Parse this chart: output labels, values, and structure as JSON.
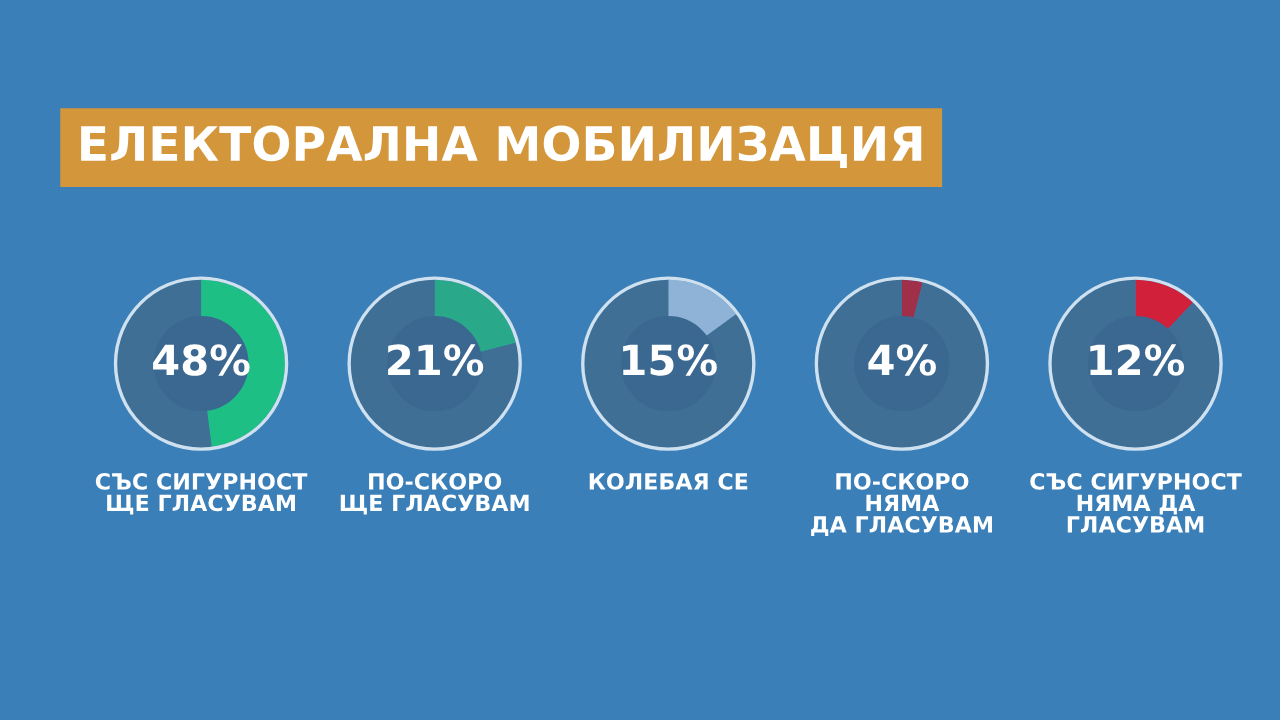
{
  "chart_data": [
    {
      "type": "donut",
      "title": "ЕЛЕКТОРАЛНА МОБИЛИЗАЦИЯ",
      "xlabel": "СЪС СИГУРНОСТ\nЩЕ ГЛАСУВАМ",
      "categories": [
        null,
        null
      ],
      "values": [
        48,
        52
      ],
      "colors": [
        "#1dbf85",
        "#3f6f95"
      ],
      "value_labels": [
        "48%",
        null
      ]
    },
    {
      "type": "donut",
      "xlabel": "ПО-СКОРО\nЩЕ ГЛАСУВАМ",
      "categories": [
        null,
        null
      ],
      "values": [
        21,
        79
      ],
      "colors": [
        "#2aa98a",
        "#3f6f95"
      ],
      "value_labels": [
        "21%",
        null
      ]
    },
    {
      "type": "donut",
      "xlabel": "КОЛЕБАЯ СЕ",
      "categories": [
        null,
        null
      ],
      "values": [
        15,
        85
      ],
      "colors": [
        "#8fb3d6",
        "#3f6f95"
      ],
      "value_labels": [
        "15%",
        null
      ]
    },
    {
      "type": "donut",
      "xlabel": "ПО-СКОРО\nНЯМА\nДА ГЛАСУВАМ",
      "categories": [
        null,
        null
      ],
      "values": [
        4,
        96
      ],
      "colors": [
        "#a0304a",
        "#3f6f95"
      ],
      "value_labels": [
        "4%",
        null
      ]
    },
    {
      "type": "donut",
      "xlabel": "СЪС СИГУРНОСТ\nНЯМА ДА\nГЛАСУВАМ",
      "categories": [
        null,
        null
      ],
      "values": [
        12,
        88
      ],
      "colors": [
        "#d0203a",
        "#3f6f95"
      ],
      "value_labels": [
        "12%",
        null
      ]
    }
  ]
}
